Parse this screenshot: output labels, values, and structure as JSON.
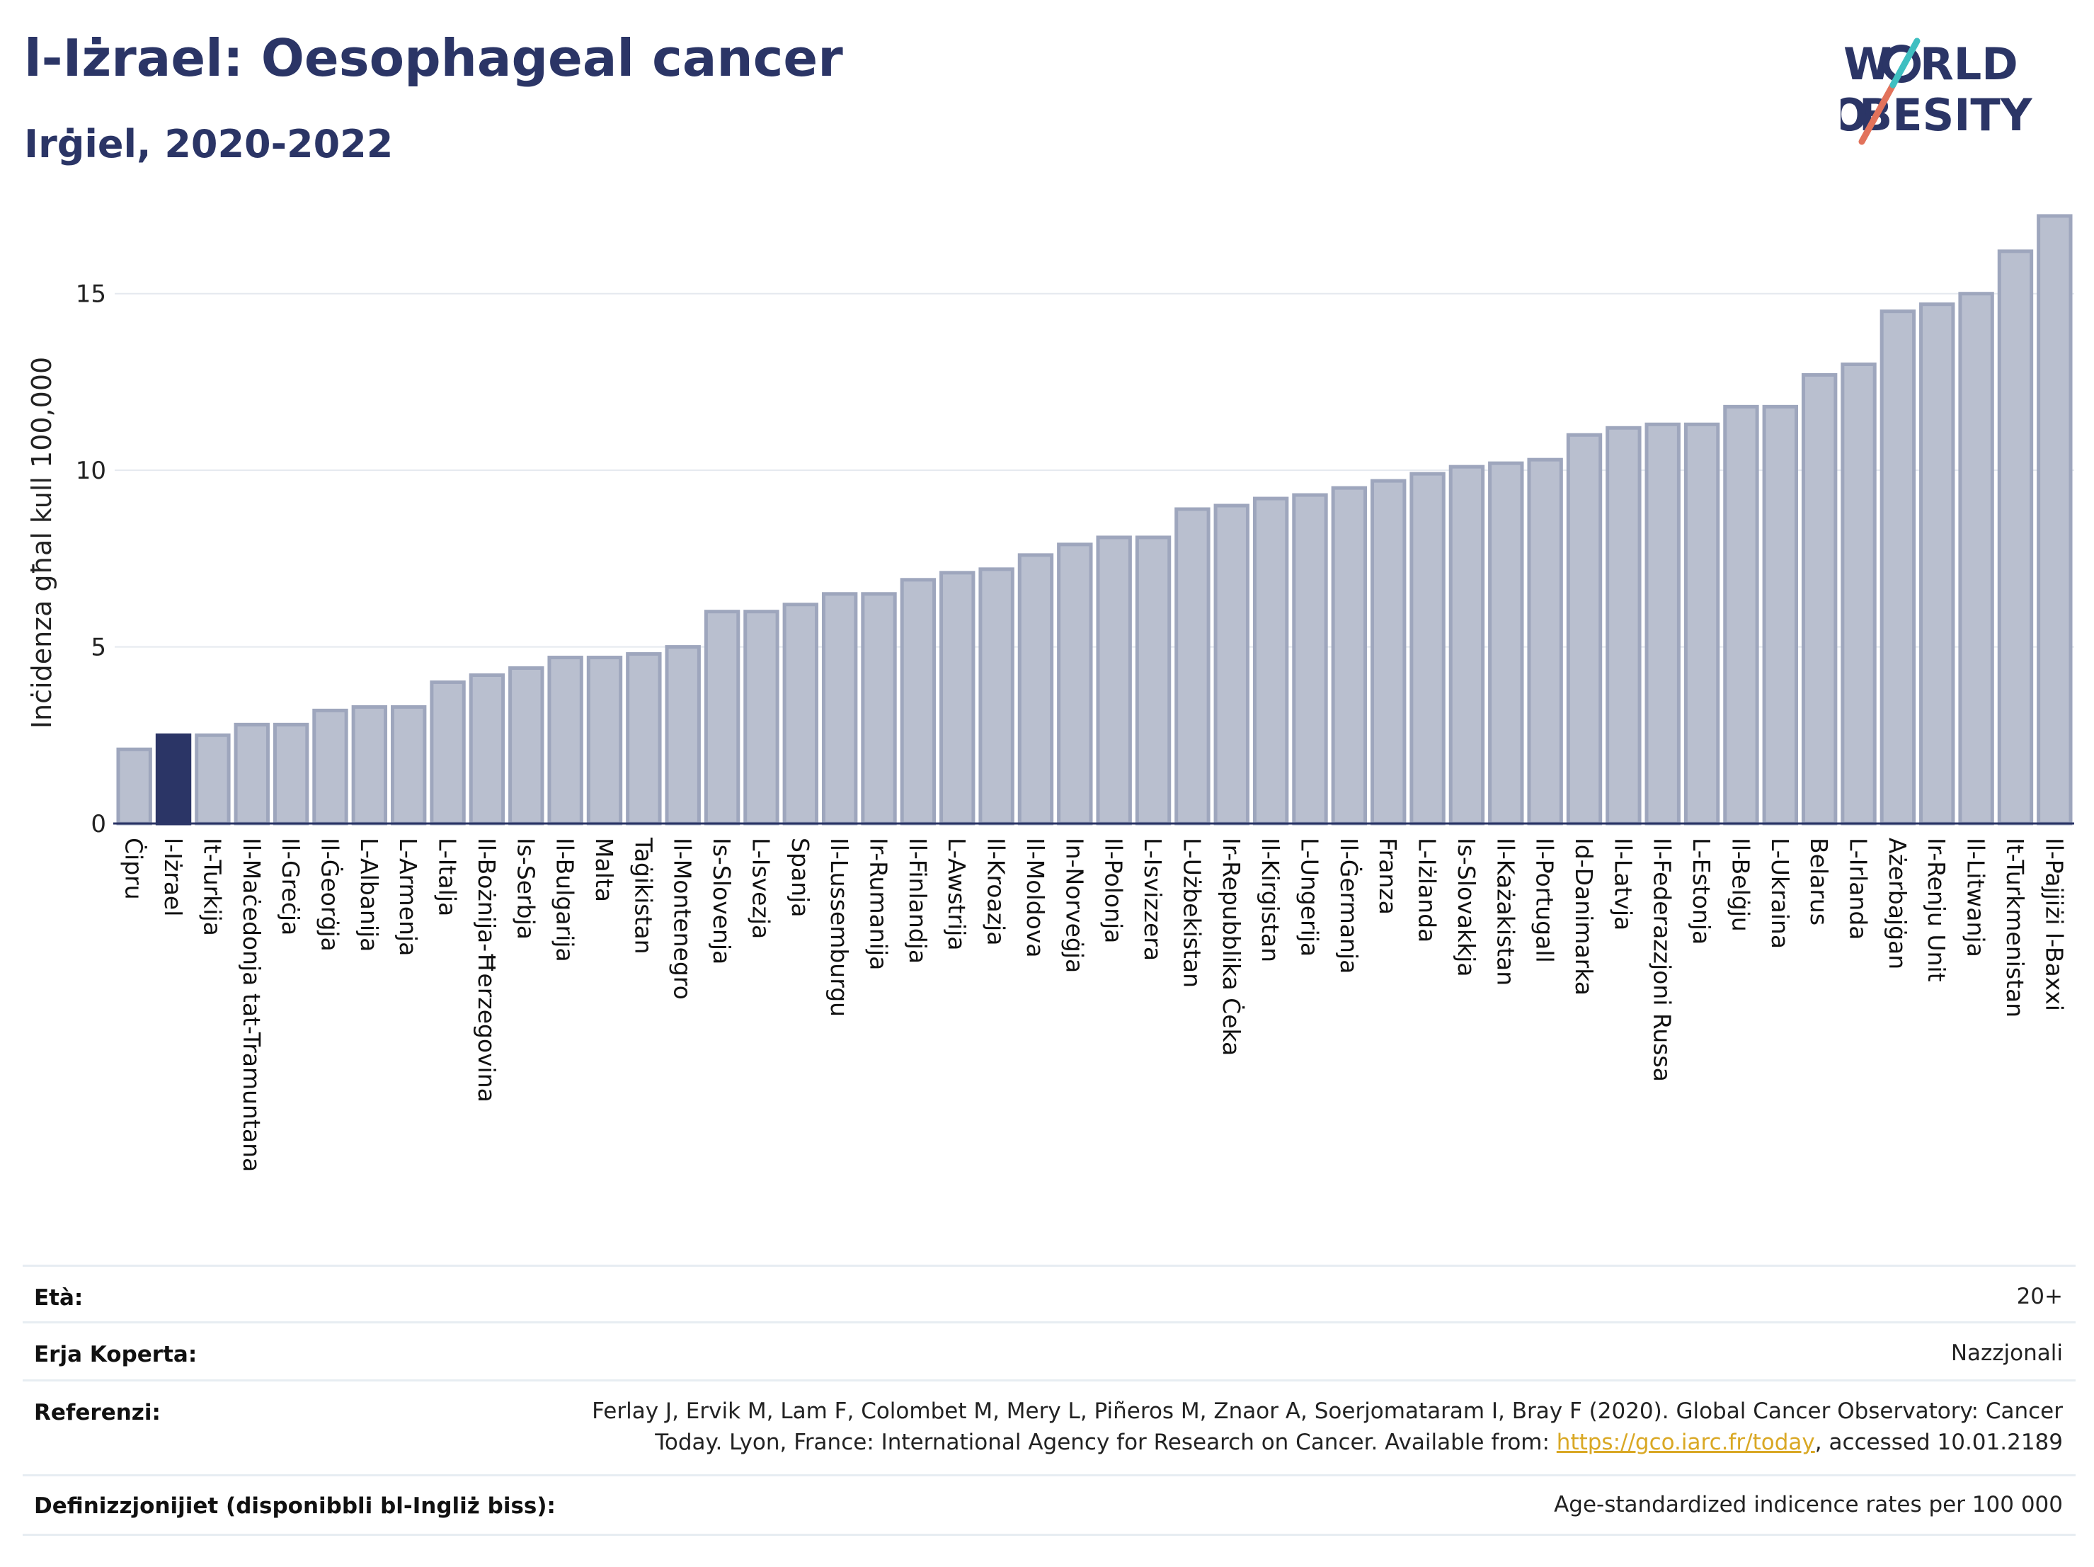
{
  "header": {
    "title": "l-Iżrael: Oesophageal cancer",
    "subtitle": "Irġiel, 2020-2022"
  },
  "logo": {
    "line1": "WORLD",
    "line2": "OBESITY"
  },
  "chart_data": {
    "type": "bar",
    "ylabel": "Inċidenza għal kull 100,000",
    "xlabel": "",
    "ylim": [
      0,
      17.5
    ],
    "yticks": [
      0,
      5,
      10,
      15
    ],
    "grid": true,
    "highlight": "l-Iżrael",
    "colors": {
      "bar": "#b9bfcf",
      "bar_edge": "#9ea6bd",
      "highlight": "#2b3566"
    },
    "categories": [
      "Ċipru",
      "l-Iżrael",
      "It-Turkija",
      "Il-Maċedonja tat-Tramuntana",
      "Il-Greċja",
      "Il-Ġeorġja",
      "L-Albanija",
      "L-Armenja",
      "L-Italja",
      "Il-Bożnija-Ħerzegovina",
      "Is-Serbja",
      "Il-Bulgarija",
      "Malta",
      "Taġikistan",
      "Il-Montenegro",
      "Is-Slovenja",
      "L-Isvezja",
      "Spanja",
      "Il-Lussemburgu",
      "Ir-Rumanija",
      "Il-Finlandja",
      "L-Awstrija",
      "Il-Kroazja",
      "Il-Moldova",
      "In-Norveġja",
      "Il-Polonja",
      "L-Isvizzera",
      "L-Użbekistan",
      "Ir-Repubblika Ċeka",
      "Il-Kirgistan",
      "L-Ungerija",
      "Il-Ġermanja",
      "Franza",
      "L-Iżlanda",
      "Is-Slovakkja",
      "Il-Każakistan",
      "Il-Portugall",
      "Id-Danimarka",
      "Il-Latvja",
      "Il-Federazzjoni Russa",
      "L-Estonja",
      "Il-Belġju",
      "L-Ukraina",
      "Belarus",
      "L-Irlanda",
      "Ażerbajġan",
      "Ir-Renju Unit",
      "Il-Litwanja",
      "It-Turkmenistan",
      "Il-Pajjiżi l-Baxxi"
    ],
    "values": [
      2.1,
      2.5,
      2.5,
      2.8,
      2.8,
      3.2,
      3.3,
      3.3,
      4.0,
      4.2,
      4.4,
      4.7,
      4.7,
      4.8,
      5.0,
      6.0,
      6.0,
      6.2,
      6.5,
      6.5,
      6.9,
      7.1,
      7.2,
      7.6,
      7.9,
      8.1,
      8.1,
      8.9,
      9.0,
      9.2,
      9.3,
      9.5,
      9.7,
      9.9,
      10.1,
      10.2,
      10.3,
      11.0,
      11.2,
      11.3,
      11.3,
      11.8,
      11.8,
      12.7,
      13.0,
      14.5,
      14.7,
      15.0,
      16.2,
      17.2
    ]
  },
  "info": {
    "age_label": "Età:",
    "age_value": "20+",
    "coverage_label": "Erja Koperta:",
    "coverage_value": "Nazzjonali",
    "references_label": "Referenzi:",
    "references_line1": "Ferlay J, Ervik M, Lam F, Colombet M, Mery L, Piñeros M, Znaor A, Soerjomataram I, Bray F (2020). Global Cancer Observatory: Cancer",
    "references_line2_pre": "Today. Lyon, France: International Agency for Research on Cancer. Available from: ",
    "references_link": "https://gco.iarc.fr/today",
    "references_line2_post": ", accessed 10.01.2189",
    "definitions_label": "Definizzjonijiet (disponibbli bl-Ingliż biss):",
    "definitions_value": "Age-standardized indicence rates per 100 000"
  }
}
